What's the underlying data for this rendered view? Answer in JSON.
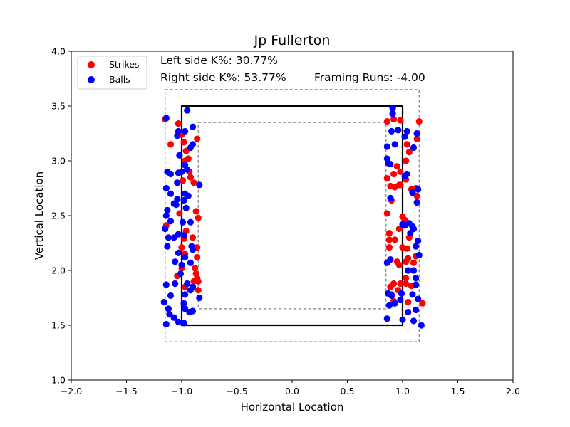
{
  "chart_data": {
    "type": "scatter",
    "title": "Jp Fullerton",
    "xlabel": "Horizontal Location",
    "ylabel": "Vertical Location",
    "xlim": [
      -2.0,
      2.0
    ],
    "ylim": [
      1.0,
      4.0
    ],
    "xticks": [
      "−2.0",
      "−1.5",
      "−1.0",
      "−0.5",
      "0.0",
      "0.5",
      "1.0",
      "1.5",
      "2.0"
    ],
    "yticks": [
      "1.0",
      "1.5",
      "2.0",
      "2.5",
      "3.0",
      "3.5",
      "4.0"
    ],
    "xtick_values": [
      -2.0,
      -1.5,
      -1.0,
      -0.5,
      0.0,
      0.5,
      1.0,
      1.5,
      2.0
    ],
    "ytick_values": [
      1.0,
      1.5,
      2.0,
      2.5,
      3.0,
      3.5,
      4.0
    ],
    "grid": false,
    "legend_position": "top-left",
    "annotations": {
      "left_k": "Left side K%: 30.77%",
      "right_k": "Right side K%: 53.77%",
      "framing": "Framing Runs: -4.00"
    },
    "zones": {
      "strike_zone": {
        "x": [
          -1.0,
          1.0
        ],
        "y": [
          1.5,
          3.5
        ]
      },
      "outer_zone": {
        "x": [
          -1.15,
          1.15
        ],
        "y": [
          1.35,
          3.65
        ]
      },
      "inner_zone": {
        "x": [
          -0.85,
          0.85
        ],
        "y": [
          1.65,
          3.35
        ]
      }
    },
    "series": [
      {
        "name": "Strikes",
        "color": "#ff0000",
        "points": [
          [
            -1.15,
            3.38
          ],
          [
            -1.1,
            3.15
          ],
          [
            -1.03,
            3.34
          ],
          [
            -1.0,
            3.24
          ],
          [
            -0.98,
            3.17
          ],
          [
            -0.96,
            3.09
          ],
          [
            -0.97,
            3.0
          ],
          [
            -0.94,
            3.02
          ],
          [
            -0.93,
            2.9
          ],
          [
            -0.92,
            2.85
          ],
          [
            -0.89,
            2.8
          ],
          [
            -0.86,
            3.2
          ],
          [
            -0.99,
            2.82
          ],
          [
            -1.02,
            2.52
          ],
          [
            -1.14,
            2.41
          ],
          [
            -0.87,
            2.54
          ],
          [
            -0.85,
            2.48
          ],
          [
            -0.96,
            2.36
          ],
          [
            -0.98,
            2.29
          ],
          [
            -0.9,
            2.3
          ],
          [
            -0.86,
            2.21
          ],
          [
            -1.0,
            2.21
          ],
          [
            -0.97,
            2.15
          ],
          [
            -0.86,
            2.12
          ],
          [
            -1.0,
            2.02
          ],
          [
            -0.88,
            2.02
          ],
          [
            -0.87,
            1.97
          ],
          [
            -0.86,
            1.93
          ],
          [
            -0.89,
            1.9
          ],
          [
            -0.85,
            1.9
          ],
          [
            -1.04,
            1.95
          ],
          [
            -0.97,
            1.85
          ],
          [
            -0.9,
            1.85
          ],
          [
            -0.85,
            1.82
          ],
          [
            0.86,
            3.36
          ],
          [
            0.92,
            3.38
          ],
          [
            0.98,
            3.37
          ],
          [
            1.04,
            3.15
          ],
          [
            1.06,
            3.08
          ],
          [
            1.03,
            3.0
          ],
          [
            1.15,
            3.36
          ],
          [
            1.13,
            3.2
          ],
          [
            0.95,
            2.95
          ],
          [
            0.98,
            2.9
          ],
          [
            0.92,
            2.88
          ],
          [
            0.86,
            2.84
          ],
          [
            0.97,
            2.78
          ],
          [
            1.03,
            2.83
          ],
          [
            0.89,
            2.77
          ],
          [
            0.93,
            2.76
          ],
          [
            1.08,
            2.74
          ],
          [
            1.12,
            2.75
          ],
          [
            0.9,
            2.64
          ],
          [
            1.13,
            2.68
          ],
          [
            0.86,
            2.52
          ],
          [
            1.0,
            2.49
          ],
          [
            1.02,
            2.46
          ],
          [
            1.06,
            2.3
          ],
          [
            0.97,
            2.38
          ],
          [
            0.88,
            2.34
          ],
          [
            0.88,
            2.28
          ],
          [
            0.93,
            2.28
          ],
          [
            0.88,
            2.21
          ],
          [
            1.0,
            2.21
          ],
          [
            1.04,
            2.2
          ],
          [
            1.05,
            2.11
          ],
          [
            1.1,
            2.07
          ],
          [
            1.12,
            2.13
          ],
          [
            0.95,
            2.08
          ],
          [
            0.97,
            2.05
          ],
          [
            1.03,
            2.08
          ],
          [
            1.05,
            2.0
          ],
          [
            1.03,
            1.93
          ],
          [
            1.03,
            1.88
          ],
          [
            0.92,
            1.88
          ],
          [
            0.89,
            1.85
          ],
          [
            0.98,
            1.88
          ],
          [
            1.08,
            1.86
          ],
          [
            0.96,
            1.82
          ],
          [
            0.92,
            1.72
          ],
          [
            0.9,
            1.78
          ],
          [
            1.05,
            1.71
          ],
          [
            1.18,
            1.7
          ],
          [
            0.98,
            2.78
          ]
        ]
      },
      {
        "name": "Balls",
        "color": "#0000ff",
        "points": [
          [
            -1.14,
            3.39
          ],
          [
            -0.95,
            3.46
          ],
          [
            -1.03,
            3.27
          ],
          [
            -0.97,
            3.27
          ],
          [
            -0.9,
            3.31
          ],
          [
            -1.04,
            3.23
          ],
          [
            -0.9,
            3.15
          ],
          [
            -0.92,
            3.12
          ],
          [
            -1.02,
            3.05
          ],
          [
            -0.97,
            2.96
          ],
          [
            -1.0,
            2.9
          ],
          [
            -1.13,
            2.9
          ],
          [
            -1.1,
            2.88
          ],
          [
            -1.03,
            2.89
          ],
          [
            -0.95,
            2.92
          ],
          [
            -0.84,
            2.78
          ],
          [
            -1.04,
            2.8
          ],
          [
            -1.1,
            2.7
          ],
          [
            -1.14,
            2.75
          ],
          [
            -1.04,
            2.65
          ],
          [
            -1.07,
            2.61
          ],
          [
            -1.05,
            2.6
          ],
          [
            -0.97,
            2.7
          ],
          [
            -0.94,
            2.68
          ],
          [
            -0.98,
            2.64
          ],
          [
            -0.96,
            2.57
          ],
          [
            -1.13,
            2.55
          ],
          [
            -1.14,
            2.5
          ],
          [
            -1.1,
            2.45
          ],
          [
            -0.99,
            2.44
          ],
          [
            -0.92,
            2.44
          ],
          [
            -1.15,
            2.38
          ],
          [
            -1.03,
            2.33
          ],
          [
            -0.98,
            2.32
          ],
          [
            -1.07,
            2.3
          ],
          [
            -1.12,
            2.3
          ],
          [
            -1.13,
            2.22
          ],
          [
            -0.91,
            2.22
          ],
          [
            -0.9,
            2.19
          ],
          [
            -0.92,
            2.07
          ],
          [
            -1.03,
            2.16
          ],
          [
            -0.97,
            2.12
          ],
          [
            -1.0,
            2.05
          ],
          [
            -1.01,
            1.97
          ],
          [
            -1.06,
            1.88
          ],
          [
            -1.14,
            1.87
          ],
          [
            -0.95,
            1.88
          ],
          [
            -0.92,
            1.82
          ],
          [
            -0.84,
            1.75
          ],
          [
            -0.9,
            1.85
          ],
          [
            -0.97,
            1.78
          ],
          [
            -1.1,
            1.77
          ],
          [
            -0.98,
            1.7
          ],
          [
            -1.16,
            1.71
          ],
          [
            -0.97,
            1.65
          ],
          [
            -0.93,
            1.62
          ],
          [
            -0.9,
            1.63
          ],
          [
            -1.12,
            1.65
          ],
          [
            -1.11,
            1.6
          ],
          [
            -1.07,
            1.57
          ],
          [
            -1.03,
            1.53
          ],
          [
            -0.98,
            1.52
          ],
          [
            -1.14,
            1.51
          ],
          [
            -1.06,
            2.08
          ],
          [
            0.91,
            3.48
          ],
          [
            0.91,
            3.43
          ],
          [
            0.9,
            3.27
          ],
          [
            0.96,
            3.28
          ],
          [
            1.04,
            3.27
          ],
          [
            1.13,
            3.25
          ],
          [
            1.02,
            3.22
          ],
          [
            0.86,
            3.13
          ],
          [
            1.1,
            3.12
          ],
          [
            0.93,
            3.15
          ],
          [
            0.86,
            3.02
          ],
          [
            0.87,
            2.98
          ],
          [
            0.89,
            2.97
          ],
          [
            1.04,
            2.88
          ],
          [
            1.02,
            2.86
          ],
          [
            1.09,
            2.71
          ],
          [
            1.14,
            2.74
          ],
          [
            1.13,
            2.62
          ],
          [
            0.89,
            2.66
          ],
          [
            1.0,
            2.42
          ],
          [
            1.02,
            2.41
          ],
          [
            1.06,
            2.43
          ],
          [
            1.09,
            2.4
          ],
          [
            1.1,
            2.38
          ],
          [
            1.07,
            2.34
          ],
          [
            1.12,
            2.22
          ],
          [
            1.14,
            2.27
          ],
          [
            1.15,
            2.14
          ],
          [
            0.89,
            2.1
          ],
          [
            0.86,
            2.07
          ],
          [
            1.1,
            2.0
          ],
          [
            1.12,
            1.93
          ],
          [
            1.12,
            1.87
          ],
          [
            0.99,
            1.79
          ],
          [
            0.87,
            1.79
          ],
          [
            0.9,
            1.77
          ],
          [
            0.98,
            1.73
          ],
          [
            1.09,
            1.78
          ],
          [
            1.14,
            1.74
          ],
          [
            1.12,
            1.64
          ],
          [
            1.05,
            1.62
          ],
          [
            0.93,
            1.7
          ],
          [
            0.88,
            1.68
          ],
          [
            0.86,
            1.56
          ],
          [
            1.0,
            1.55
          ],
          [
            1.1,
            1.54
          ],
          [
            1.17,
            1.5
          ],
          [
            1.05,
            2.0
          ]
        ]
      }
    ]
  }
}
